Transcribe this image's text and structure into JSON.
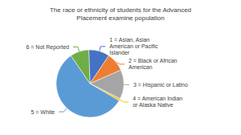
{
  "chart_data": {
    "type": "pie",
    "title": "The race or ethnicity of students for the Advanced\nPlacement examine population",
    "categories": [
      "1 = Asian, Asian\nAmerican or Pacific\nIslander",
      "2 = Black or African\nAmerican",
      "3 = Hispanic or Latino",
      "4 = American Indian\nor Alaska Native",
      "5 = White",
      "6 = Not Reported"
    ],
    "values": [
      10,
      9,
      14,
      1,
      57,
      9
    ],
    "colors": [
      "#4472C4",
      "#ED7D31",
      "#A5A5A5",
      "#FFC000",
      "#5B9BD5",
      "#70AD47"
    ]
  }
}
